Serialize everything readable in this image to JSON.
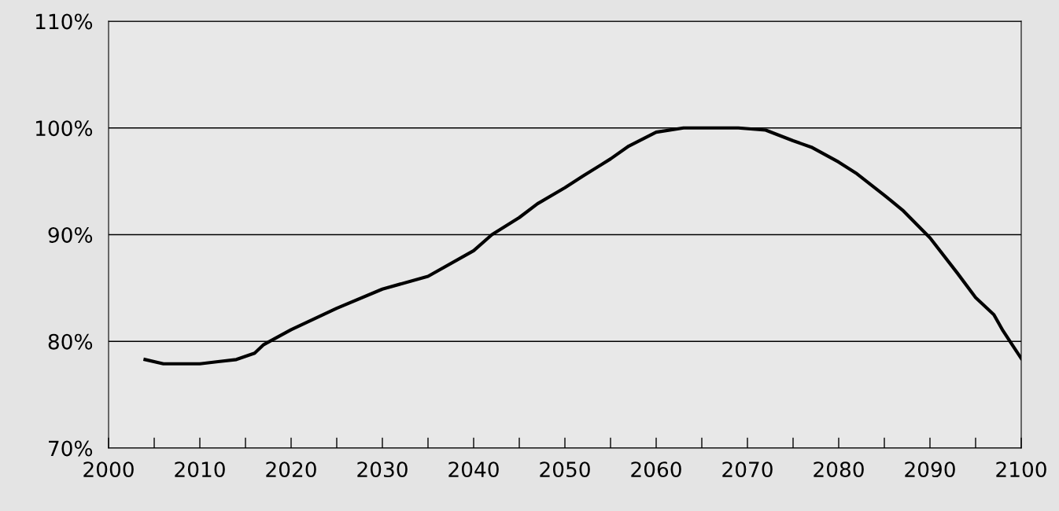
{
  "chart_data": {
    "type": "line",
    "x": [
      2004,
      2006,
      2008,
      2010,
      2012,
      2014,
      2016,
      2017,
      2020,
      2025,
      2030,
      2035,
      2040,
      2042,
      2045,
      2047,
      2050,
      2052,
      2055,
      2057,
      2060,
      2063,
      2066,
      2069,
      2072,
      2075,
      2077,
      2080,
      2082,
      2085,
      2087,
      2090,
      2093,
      2095,
      2097,
      2098,
      2099,
      2100
    ],
    "series": [
      {
        "color": "#000000",
        "values": [
          78.3,
          77.9,
          77.9,
          77.9,
          78.1,
          78.3,
          78.9,
          79.7,
          81.1,
          83.1,
          84.9,
          86.1,
          88.5,
          90.0,
          91.6,
          92.9,
          94.4,
          95.5,
          97.1,
          98.3,
          99.6,
          100,
          100,
          100,
          99.8,
          98.8,
          98.2,
          96.8,
          95.7,
          93.7,
          92.3,
          89.7,
          86.4,
          84.1,
          82.5,
          81.0,
          79.7,
          78.4
        ]
      }
    ],
    "xlim": [
      2000,
      2100
    ],
    "xticks": [
      2000,
      {
        "value": 2005,
        "label": null
      },
      2010,
      {
        "value": 2015,
        "label": null
      },
      2020,
      {
        "value": 2025,
        "label": null
      },
      2030,
      {
        "value": 2035,
        "label": null
      },
      2040,
      {
        "value": 2045,
        "label": null
      },
      2050,
      {
        "value": 2055,
        "label": null
      },
      2060,
      {
        "value": 2065,
        "label": null
      },
      2070,
      {
        "value": 2075,
        "label": null
      },
      2080,
      {
        "value": 2085,
        "label": null
      },
      2090,
      {
        "value": 2095,
        "label": null
      },
      2100
    ],
    "ylim": [
      70,
      110
    ],
    "yticks": [
      {
        "value": 70,
        "label": "70%"
      },
      {
        "value": 80,
        "label": "80%"
      },
      {
        "value": 90,
        "label": "90%"
      },
      {
        "value": 100,
        "label": "100%"
      },
      {
        "value": 110,
        "label": "110%"
      }
    ],
    "grid": "y",
    "marker": "none",
    "line_style": "solid"
  }
}
